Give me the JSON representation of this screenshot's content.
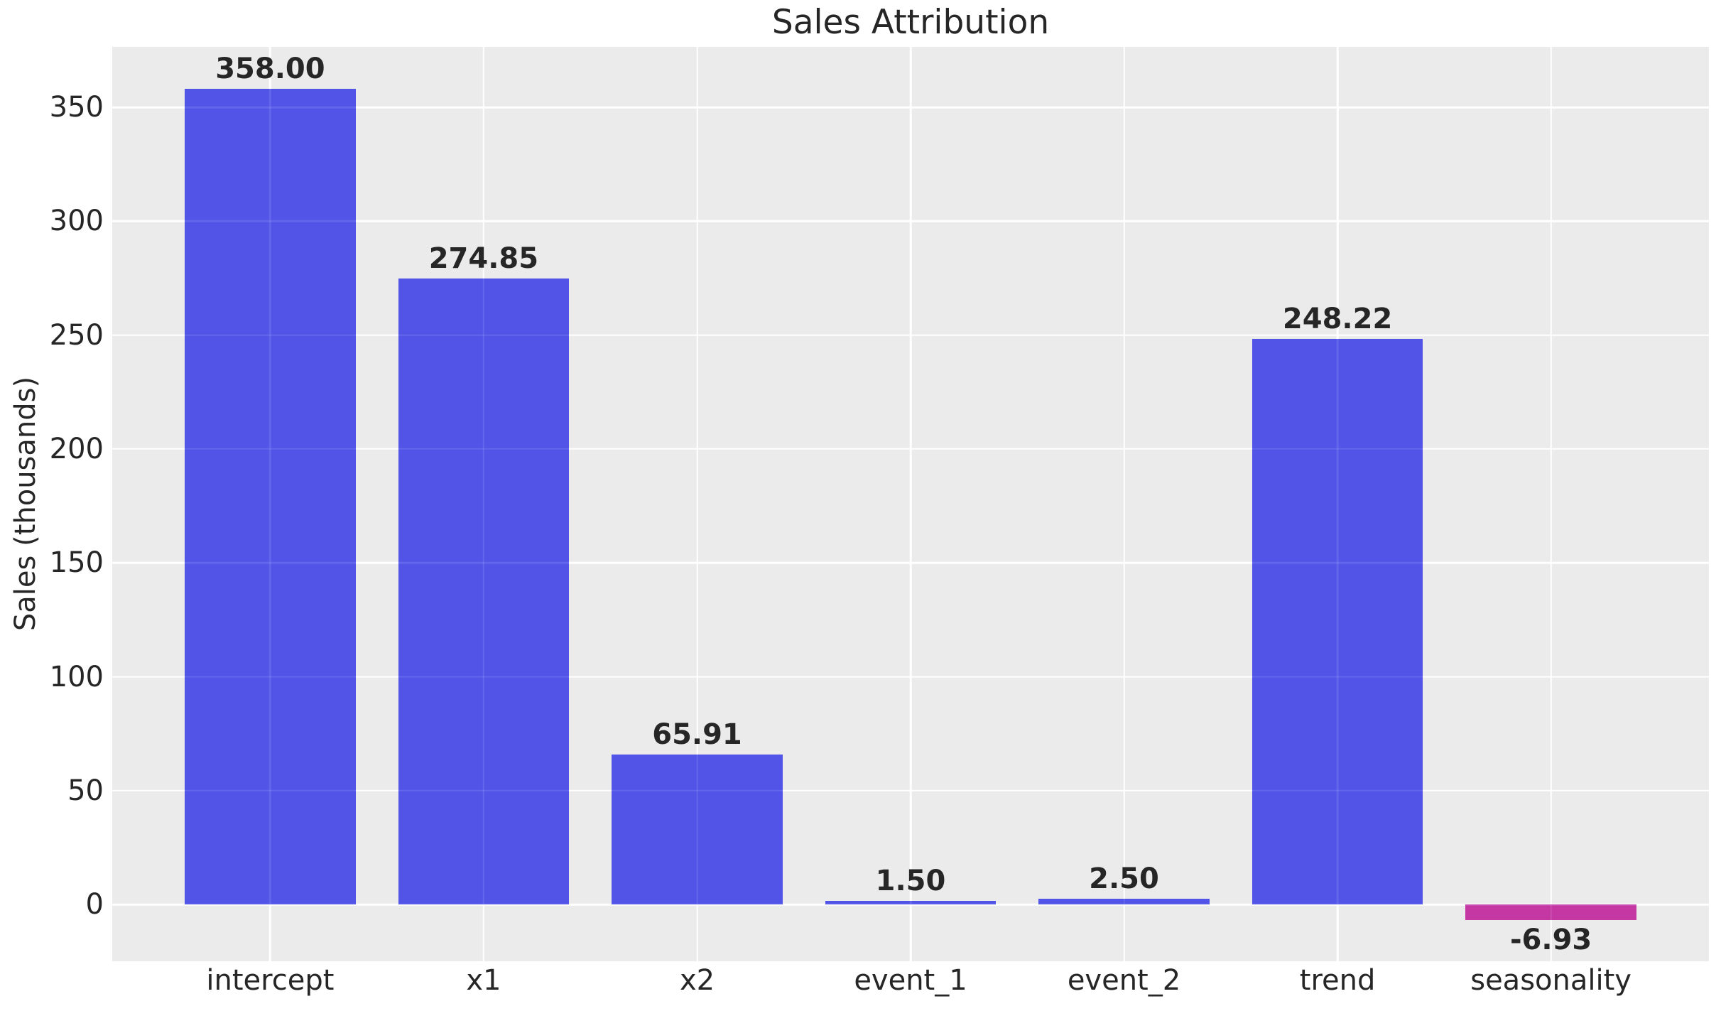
{
  "chart_data": {
    "type": "bar",
    "title": "Sales Attribution",
    "xlabel": "",
    "ylabel": "Sales (thousands)",
    "categories": [
      "intercept",
      "x1",
      "x2",
      "event_1",
      "event_2",
      "trend",
      "seasonality"
    ],
    "values": [
      358.0,
      274.85,
      65.91,
      1.5,
      2.5,
      248.22,
      -6.93
    ],
    "value_labels": [
      "358.00",
      "274.85",
      "65.91",
      "1.50",
      "2.50",
      "248.22",
      "-6.93"
    ],
    "y_ticks": [
      0,
      50,
      100,
      150,
      200,
      250,
      300,
      350
    ],
    "ylim": [
      -24.9,
      376.5
    ],
    "xlim": [
      -0.74,
      6.74
    ],
    "bar_width_fraction": 0.8,
    "grid": true,
    "legend": false,
    "colors": {
      "positive_bar": "#5254e8",
      "negative_bar": "#c538a4",
      "plot_bg": "#ebebeb",
      "grid": "#ffffff",
      "grid_over_bars": "rgba(255,255,255,0.10)",
      "text": "#262626",
      "figure_bg": "#ffffff"
    }
  }
}
